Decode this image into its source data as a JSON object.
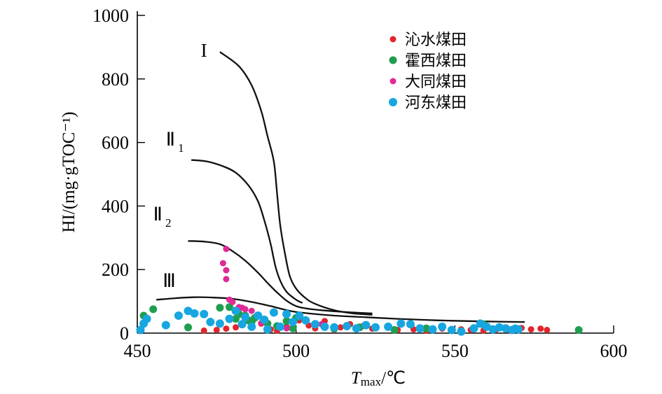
{
  "chart_data": {
    "type": "scatter",
    "xlabel_main": "T",
    "xlabel_sub": "max",
    "xlabel_unit": "/℃",
    "ylabel": "HI/(mg·gTOC⁻¹)",
    "xlim": [
      450,
      600
    ],
    "ylim": [
      0,
      1000
    ],
    "x_ticks": [
      {
        "value": 450,
        "label": "450"
      },
      {
        "value": 500,
        "label": "500"
      },
      {
        "value": 550,
        "label": "550"
      },
      {
        "value": 600,
        "label": "600"
      }
    ],
    "y_ticks": [
      {
        "value": 0,
        "label": "0"
      },
      {
        "value": 200,
        "label": "200"
      },
      {
        "value": 400,
        "label": "400"
      },
      {
        "value": 600,
        "label": "600"
      },
      {
        "value": 800,
        "label": "800"
      },
      {
        "value": 1000,
        "label": "1000"
      }
    ],
    "legend_position": "top-right",
    "curves": [
      {
        "label": "I",
        "sub": "",
        "label_x": 470,
        "label_y": 870,
        "points": [
          [
            476,
            885
          ],
          [
            482,
            840
          ],
          [
            486,
            780
          ],
          [
            489,
            700
          ],
          [
            491,
            620
          ],
          [
            493,
            540
          ],
          [
            494,
            440
          ],
          [
            495,
            340
          ],
          [
            496.5,
            250
          ],
          [
            498,
            180
          ],
          [
            500,
            140
          ],
          [
            503,
            110
          ],
          [
            506,
            92
          ],
          [
            512,
            72
          ],
          [
            518,
            62
          ],
          [
            524,
            58
          ]
        ]
      },
      {
        "label": "Ⅱ",
        "sub": "1",
        "label_x": 459,
        "label_y": 590,
        "points": [
          [
            467,
            545
          ],
          [
            472,
            540
          ],
          [
            477,
            525
          ],
          [
            481,
            505
          ],
          [
            485,
            465
          ],
          [
            488,
            415
          ],
          [
            490,
            355
          ],
          [
            492,
            280
          ],
          [
            493.5,
            210
          ],
          [
            495,
            165
          ],
          [
            497,
            130
          ],
          [
            500,
            105
          ],
          [
            502,
            95
          ]
        ]
      },
      {
        "label": "Ⅱ",
        "sub": "2",
        "label_x": 455,
        "label_y": 355,
        "points": [
          [
            466,
            290
          ],
          [
            471,
            288
          ],
          [
            476,
            280
          ],
          [
            480,
            258
          ],
          [
            484,
            228
          ],
          [
            488,
            190
          ],
          [
            491,
            158
          ],
          [
            494,
            128
          ],
          [
            497,
            102
          ],
          [
            500,
            85
          ],
          [
            503,
            78
          ],
          [
            508,
            72
          ],
          [
            516,
            66
          ],
          [
            524,
            62
          ]
        ]
      },
      {
        "label": "Ⅲ",
        "sub": "",
        "label_x": 458,
        "label_y": 145,
        "points": [
          [
            456,
            105
          ],
          [
            462,
            110
          ],
          [
            468,
            113
          ],
          [
            474,
            112
          ],
          [
            480,
            108
          ],
          [
            486,
            98
          ],
          [
            492,
            85
          ],
          [
            498,
            70
          ],
          [
            504,
            62
          ],
          [
            512,
            55
          ],
          [
            522,
            50
          ],
          [
            532,
            45
          ],
          [
            545,
            40
          ],
          [
            558,
            37
          ],
          [
            572,
            35
          ]
        ]
      }
    ],
    "series": [
      {
        "name": "沁水煤田",
        "color": "#e0262a",
        "radius": 4.5,
        "points": [
          [
            471,
            8
          ],
          [
            475,
            10
          ],
          [
            478,
            14
          ],
          [
            481,
            18
          ],
          [
            486,
            22
          ],
          [
            489,
            30
          ],
          [
            492,
            12
          ],
          [
            494,
            8
          ],
          [
            497,
            20
          ],
          [
            501,
            40
          ],
          [
            504,
            24
          ],
          [
            506,
            15
          ],
          [
            509,
            38
          ],
          [
            512,
            10
          ],
          [
            514,
            18
          ],
          [
            517,
            28
          ],
          [
            521,
            22
          ],
          [
            524,
            14
          ],
          [
            529,
            20
          ],
          [
            532,
            10
          ],
          [
            537,
            12
          ],
          [
            541,
            8
          ],
          [
            546,
            14
          ],
          [
            552,
            12
          ],
          [
            555,
            10
          ],
          [
            559,
            8
          ],
          [
            563,
            12
          ],
          [
            567,
            10
          ],
          [
            571,
            16
          ],
          [
            574,
            12
          ],
          [
            577,
            14
          ],
          [
            579,
            10
          ]
        ]
      },
      {
        "name": "霍西煤田",
        "color": "#1e9e4f",
        "radius": 5.5,
        "points": [
          [
            452,
            55
          ],
          [
            455,
            75
          ],
          [
            466,
            18
          ],
          [
            476,
            80
          ],
          [
            479,
            82
          ],
          [
            481,
            45
          ],
          [
            482,
            60
          ],
          [
            484,
            55
          ],
          [
            485,
            40
          ],
          [
            486,
            35
          ],
          [
            487,
            48
          ],
          [
            491,
            30
          ],
          [
            494,
            22
          ],
          [
            497,
            38
          ],
          [
            499,
            15
          ],
          [
            500,
            48
          ],
          [
            512,
            14
          ],
          [
            520,
            18
          ],
          [
            531,
            10
          ],
          [
            541,
            15
          ],
          [
            559,
            28
          ],
          [
            589,
            10
          ]
        ]
      },
      {
        "name": "大同煤田",
        "color": "#e02a96",
        "radius": 4.5,
        "points": [
          [
            478,
            265
          ],
          [
            477,
            220
          ],
          [
            478,
            198
          ],
          [
            478,
            170
          ],
          [
            479,
            105
          ],
          [
            480,
            98
          ],
          [
            482,
            82
          ],
          [
            483,
            80
          ],
          [
            484,
            75
          ],
          [
            486,
            70
          ],
          [
            489,
            32
          ],
          [
            497,
            15
          ],
          [
            508,
            28
          ]
        ]
      },
      {
        "name": "河东煤田",
        "color": "#17a6e0",
        "radius": 6,
        "points": [
          [
            451,
            10
          ],
          [
            452,
            30
          ],
          [
            453,
            45
          ],
          [
            459,
            25
          ],
          [
            463,
            55
          ],
          [
            466,
            70
          ],
          [
            468,
            62
          ],
          [
            471,
            60
          ],
          [
            473,
            35
          ],
          [
            476,
            30
          ],
          [
            479,
            45
          ],
          [
            481,
            70
          ],
          [
            483,
            28
          ],
          [
            484,
            50
          ],
          [
            486,
            20
          ],
          [
            488,
            55
          ],
          [
            490,
            42
          ],
          [
            491,
            12
          ],
          [
            493,
            65
          ],
          [
            495,
            20
          ],
          [
            497,
            60
          ],
          [
            499,
            35
          ],
          [
            501,
            55
          ],
          [
            503,
            40
          ],
          [
            506,
            28
          ],
          [
            509,
            20
          ],
          [
            512,
            18
          ],
          [
            516,
            22
          ],
          [
            519,
            15
          ],
          [
            522,
            25
          ],
          [
            525,
            18
          ],
          [
            529,
            20
          ],
          [
            533,
            30
          ],
          [
            536,
            28
          ],
          [
            539,
            15
          ],
          [
            543,
            12
          ],
          [
            546,
            20
          ],
          [
            549,
            10
          ],
          [
            552,
            5
          ],
          [
            556,
            15
          ],
          [
            558,
            30
          ],
          [
            560,
            20
          ],
          [
            562,
            12
          ],
          [
            564,
            18
          ],
          [
            566,
            15
          ],
          [
            568,
            10
          ],
          [
            569,
            14
          ],
          [
            570,
            12
          ]
        ]
      }
    ]
  }
}
